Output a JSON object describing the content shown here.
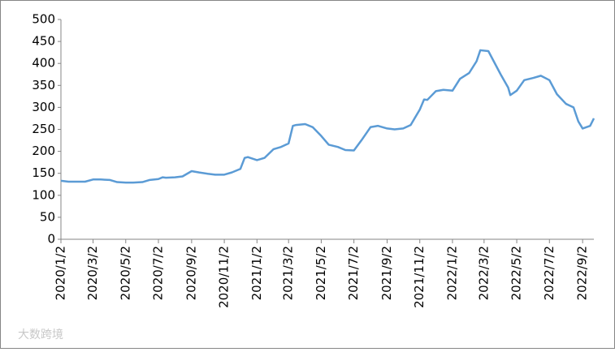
{
  "chart_data": {
    "type": "line",
    "x": [
      "2020/1/2",
      "2020/1/16",
      "2020/2/2",
      "2020/2/16",
      "2020/3/2",
      "2020/3/16",
      "2020/4/2",
      "2020/4/16",
      "2020/5/2",
      "2020/5/16",
      "2020/6/2",
      "2020/6/16",
      "2020/7/2",
      "2020/7/10",
      "2020/7/16",
      "2020/8/2",
      "2020/8/16",
      "2020/9/2",
      "2020/9/16",
      "2020/10/2",
      "2020/10/16",
      "2020/11/2",
      "2020/11/16",
      "2020/12/2",
      "2020/12/10",
      "2020/12/16",
      "2021/1/2",
      "2021/1/16",
      "2021/2/2",
      "2021/2/16",
      "2021/3/2",
      "2021/3/10",
      "2021/3/16",
      "2021/4/2",
      "2021/4/16",
      "2021/5/2",
      "2021/5/16",
      "2021/6/2",
      "2021/6/16",
      "2021/7/2",
      "2021/7/16",
      "2021/8/2",
      "2021/8/16",
      "2021/9/2",
      "2021/9/16",
      "2021/10/2",
      "2021/10/16",
      "2021/11/2",
      "2021/11/10",
      "2021/11/16",
      "2021/12/2",
      "2021/12/16",
      "2022/1/2",
      "2022/1/16",
      "2022/2/2",
      "2022/2/16",
      "2022/2/23",
      "2022/3/10",
      "2022/3/20",
      "2022/4/2",
      "2022/4/16",
      "2022/4/20",
      "2022/5/2",
      "2022/5/16",
      "2022/6/2",
      "2022/6/16",
      "2022/7/2",
      "2022/7/16",
      "2022/8/2",
      "2022/8/16",
      "2022/8/25",
      "2022/9/2",
      "2022/9/16",
      "2022/9/23"
    ],
    "series": [
      {
        "color": "#5b9bd5",
        "values": [
          133,
          131,
          131,
          131,
          136,
          136,
          135,
          130,
          129,
          129,
          130,
          135,
          137,
          141,
          140,
          141,
          143,
          155,
          152,
          149,
          147,
          147,
          152,
          160,
          185,
          187,
          180,
          185,
          205,
          210,
          218,
          258,
          260,
          262,
          255,
          235,
          215,
          210,
          203,
          202,
          225,
          255,
          258,
          252,
          250,
          252,
          260,
          295,
          318,
          317,
          337,
          340,
          338,
          365,
          378,
          405,
          430,
          428,
          405,
          375,
          345,
          328,
          338,
          362,
          367,
          372,
          362,
          330,
          308,
          300,
          268,
          252,
          258,
          275
        ]
      }
    ],
    "xlim": [
      "2020/1/2",
      "2022/9/23"
    ],
    "xticks": [
      "2020/1/2",
      "2020/3/2",
      "2020/5/2",
      "2020/7/2",
      "2020/9/2",
      "2020/11/2",
      "2021/1/2",
      "2021/3/2",
      "2021/5/2",
      "2021/7/2",
      "2021/9/2",
      "2021/11/2",
      "2022/1/2",
      "2022/3/2",
      "2022/5/2",
      "2022/7/2",
      "2022/9/2"
    ],
    "ylim": [
      0,
      500
    ],
    "yticks": [
      0,
      50,
      100,
      150,
      200,
      250,
      300,
      350,
      400,
      450,
      500
    ],
    "grid": false,
    "watermark": "大数跨境"
  }
}
